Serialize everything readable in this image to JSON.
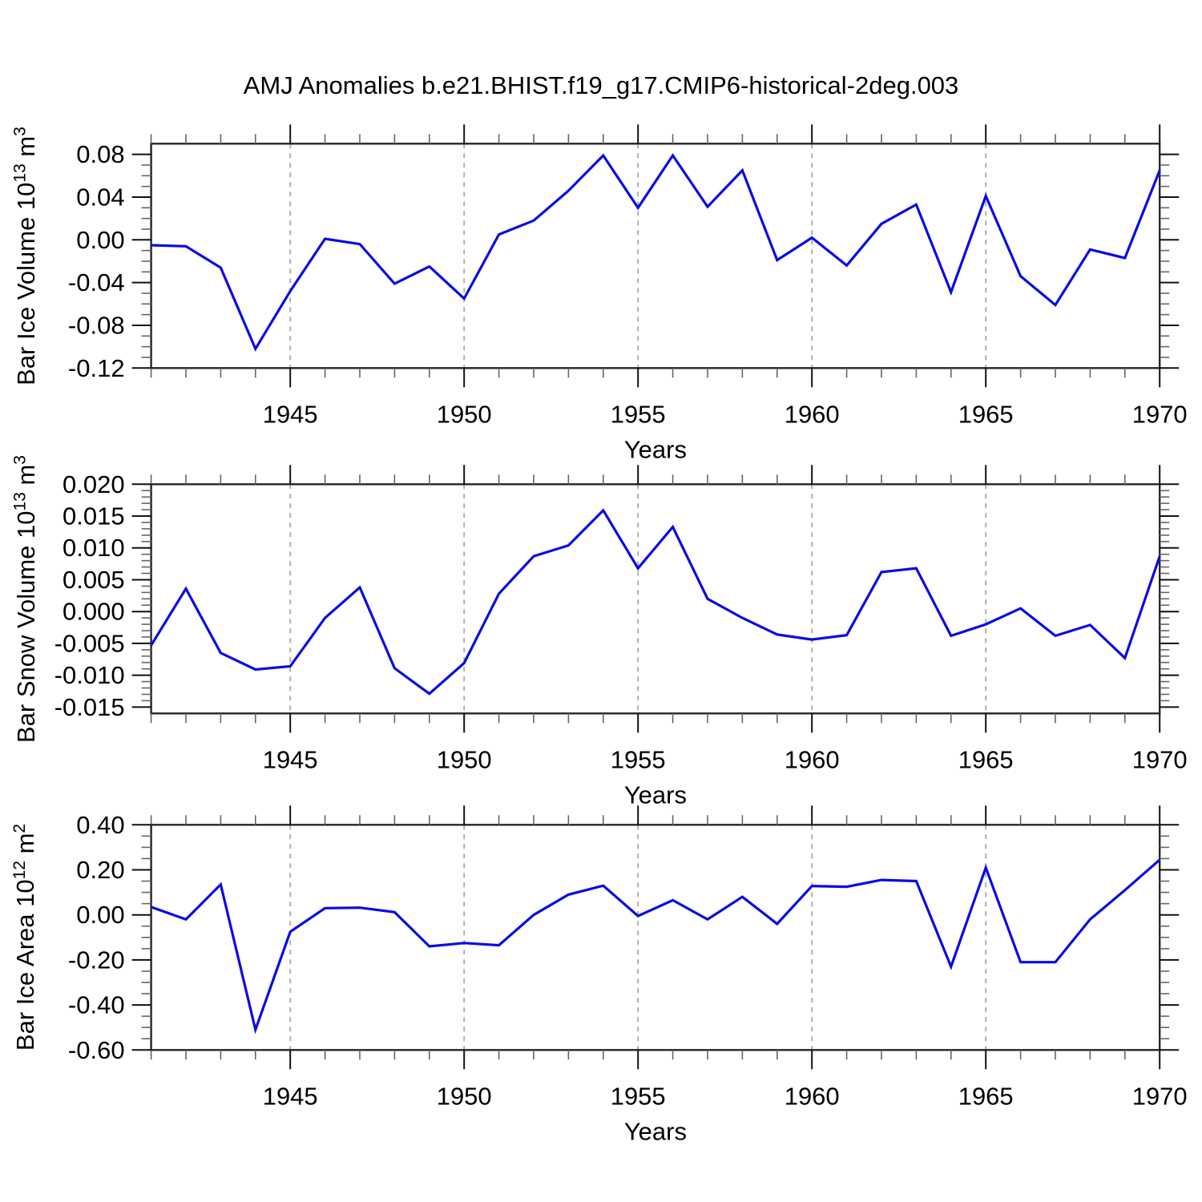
{
  "title": "AMJ Anomalies b.e21.BHIST.f19_g17.CMIP6-historical-2deg.003",
  "line_color": "#0a0ae6",
  "chart_data": [
    {
      "type": "line",
      "ylabel": "Bar Ice Volume 10^13 m^3",
      "ylabel_prefix": "Bar Ice Volume 10",
      "ylabel_exp": "13",
      "ylabel_unit": " m",
      "ylabel_unit_exp": "3",
      "xlabel": "Years",
      "xlim": [
        1941,
        1970
      ],
      "ylim": [
        -0.12,
        0.09
      ],
      "x_minor_step": 1,
      "y_minor_step": 0.01,
      "xticks": [
        1945,
        1950,
        1955,
        1960,
        1965,
        1970
      ],
      "xtick_labels": [
        "1945",
        "1950",
        "1955",
        "1960",
        "1965",
        "1970"
      ],
      "yticks": [
        0.08,
        0.04,
        0.0,
        -0.04,
        -0.08,
        -0.12
      ],
      "ytick_labels": [
        "0.08",
        "0.04",
        "0.00",
        "-0.04",
        "-0.08",
        "-0.12"
      ],
      "gridlines_at": [
        1945,
        1950,
        1955,
        1960,
        1965
      ],
      "grid": "vertical dashed at major x ticks",
      "legend": "none",
      "x": [
        1941,
        1942,
        1943,
        1944,
        1945,
        1946,
        1947,
        1948,
        1949,
        1950,
        1951,
        1952,
        1953,
        1954,
        1955,
        1956,
        1957,
        1958,
        1959,
        1960,
        1961,
        1962,
        1963,
        1964,
        1965,
        1966,
        1967,
        1968,
        1969,
        1970
      ],
      "values": [
        -0.005,
        -0.006,
        -0.026,
        -0.102,
        -0.048,
        0.001,
        -0.004,
        -0.041,
        -0.025,
        -0.055,
        0.005,
        0.018,
        0.046,
        0.079,
        0.03,
        0.079,
        0.031,
        0.065,
        -0.019,
        0.002,
        -0.024,
        0.015,
        0.033,
        -0.049,
        0.041,
        -0.034,
        -0.061,
        -0.009,
        -0.017,
        0.065
      ]
    },
    {
      "type": "line",
      "ylabel": "Bar Snow Volume 10^13 m^3",
      "ylabel_prefix": "Bar Snow Volume 10",
      "ylabel_exp": "13",
      "ylabel_unit": " m",
      "ylabel_unit_exp": "3",
      "xlabel": "Years",
      "xlim": [
        1941,
        1970
      ],
      "ylim": [
        -0.016,
        0.02
      ],
      "x_minor_step": 1,
      "y_minor_step": 0.001,
      "xticks": [
        1945,
        1950,
        1955,
        1960,
        1965,
        1970
      ],
      "xtick_labels": [
        "1945",
        "1950",
        "1955",
        "1960",
        "1965",
        "1970"
      ],
      "yticks": [
        0.02,
        0.015,
        0.01,
        0.005,
        0.0,
        -0.005,
        -0.01,
        -0.015
      ],
      "ytick_labels": [
        "0.020",
        "0.015",
        "0.010",
        "0.005",
        "0.000",
        "-0.005",
        "-0.010",
        "-0.015"
      ],
      "gridlines_at": [
        1945,
        1950,
        1955,
        1960,
        1965
      ],
      "grid": "vertical dashed at major x ticks",
      "legend": "none",
      "x": [
        1941,
        1942,
        1943,
        1944,
        1945,
        1946,
        1947,
        1948,
        1949,
        1950,
        1951,
        1952,
        1953,
        1954,
        1955,
        1956,
        1957,
        1958,
        1959,
        1960,
        1961,
        1962,
        1963,
        1964,
        1965,
        1966,
        1967,
        1968,
        1969,
        1970
      ],
      "values": [
        -0.0053,
        0.0036,
        -0.0065,
        -0.0091,
        -0.0086,
        -0.001,
        0.0038,
        -0.0089,
        -0.0129,
        -0.0081,
        0.0028,
        0.0087,
        0.0104,
        0.0159,
        0.0068,
        0.0133,
        0.002,
        -0.001,
        -0.0036,
        -0.0044,
        -0.0037,
        0.0062,
        0.0068,
        -0.0038,
        -0.002,
        0.0005,
        -0.0038,
        -0.0021,
        -0.0073,
        0.0087
      ]
    },
    {
      "type": "line",
      "ylabel": "Bar Ice Area 10^12 m^2",
      "ylabel_prefix": "Bar Ice Area 10",
      "ylabel_exp": "12",
      "ylabel_unit": " m",
      "ylabel_unit_exp": "2",
      "xlabel": "Years",
      "xlim": [
        1941,
        1970
      ],
      "ylim": [
        -0.6,
        0.4
      ],
      "x_minor_step": 1,
      "y_minor_step": 0.05,
      "xticks": [
        1945,
        1950,
        1955,
        1960,
        1965,
        1970
      ],
      "xtick_labels": [
        "1945",
        "1950",
        "1955",
        "1960",
        "1965",
        "1970"
      ],
      "yticks": [
        0.4,
        0.2,
        0.0,
        -0.2,
        -0.4,
        -0.6
      ],
      "ytick_labels": [
        "0.40",
        "0.20",
        "0.00",
        "-0.20",
        "-0.40",
        "-0.60"
      ],
      "gridlines_at": [
        1945,
        1950,
        1955,
        1960,
        1965
      ],
      "grid": "vertical dashed at major x ticks",
      "legend": "none",
      "x": [
        1941,
        1942,
        1943,
        1944,
        1945,
        1946,
        1947,
        1948,
        1949,
        1950,
        1951,
        1952,
        1953,
        1954,
        1955,
        1956,
        1957,
        1958,
        1959,
        1960,
        1961,
        1962,
        1963,
        1964,
        1965,
        1966,
        1967,
        1968,
        1969,
        1970
      ],
      "values": [
        0.035,
        -0.02,
        0.135,
        -0.51,
        -0.075,
        0.03,
        0.032,
        0.012,
        -0.14,
        -0.125,
        -0.135,
        0.0,
        0.09,
        0.13,
        -0.005,
        0.065,
        -0.02,
        0.08,
        -0.04,
        0.128,
        0.125,
        0.155,
        0.15,
        -0.23,
        0.21,
        -0.21,
        -0.21,
        -0.02,
        0.11,
        0.245
      ]
    }
  ]
}
